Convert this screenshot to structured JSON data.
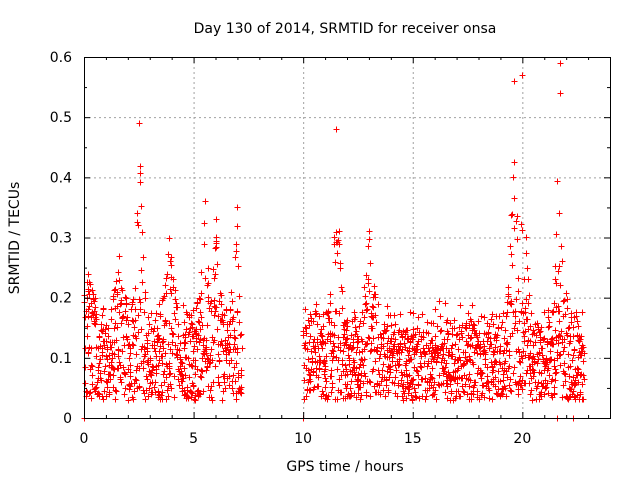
{
  "chart_data": {
    "type": "scatter",
    "title": "Day 130 of 2014, SRMTID for receiver onsa",
    "xlabel": "GPS time / hours",
    "ylabel": "SRMTID / TECUs",
    "xlim": [
      0,
      24
    ],
    "ylim": [
      0,
      0.6
    ],
    "xticks": [
      0,
      5,
      10,
      15,
      20
    ],
    "xtick_labels": [
      "0",
      "5",
      "10",
      "15",
      "20"
    ],
    "yticks": [
      0,
      0.1,
      0.2,
      0.3,
      0.4,
      0.5,
      0.6
    ],
    "ytick_labels": [
      "0",
      "0.1",
      "0.2",
      "0.3",
      "0.4",
      "0.5",
      "0.6"
    ],
    "grid": true,
    "marker": "+",
    "series": [
      {
        "name": "SRMTID",
        "color": "#ff0000",
        "segments": [
          {
            "t_start": 0.0,
            "t_end": 7.2,
            "step": 0.0167
          },
          {
            "t_start": 10.0,
            "t_end": 22.8,
            "step": 0.0167
          }
        ],
        "envelope_peaks": [
          {
            "t": 0.2,
            "value": 0.24
          },
          {
            "t": 1.6,
            "value": 0.27
          },
          {
            "t": 2.5,
            "value": 0.49
          },
          {
            "t": 3.9,
            "value": 0.3
          },
          {
            "t": 5.5,
            "value": 0.36
          },
          {
            "t": 6.0,
            "value": 0.33
          },
          {
            "t": 7.0,
            "value": 0.35
          },
          {
            "t": 11.5,
            "value": 0.48
          },
          {
            "t": 13.0,
            "value": 0.31
          },
          {
            "t": 19.6,
            "value": 0.56
          },
          {
            "t": 20.0,
            "value": 0.57
          },
          {
            "t": 21.7,
            "value": 0.59
          },
          {
            "t": 21.7,
            "value": 0.54
          }
        ],
        "baseline_range": [
          0.03,
          0.2
        ],
        "zero_values_at": [
          0.0,
          10.0,
          21.6,
          22.3
        ]
      }
    ]
  },
  "colors": {
    "points": "#ff0000",
    "grid": "#a0a0a0",
    "axis": "#000000",
    "background": "#ffffff"
  }
}
